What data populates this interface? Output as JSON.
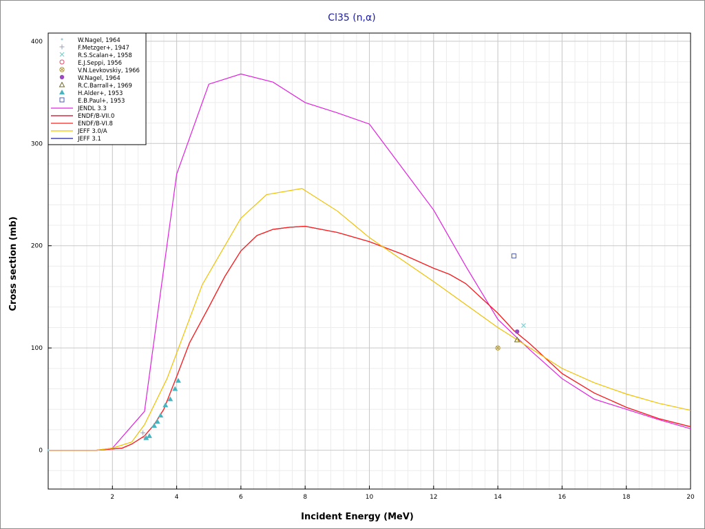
{
  "chart_data": {
    "type": "line",
    "title": "Cl35 (n,α)",
    "xlabel": "Incident Energy (MeV)",
    "ylabel": "Cross section (mb)",
    "xlim": [
      0,
      20
    ],
    "ylim": [
      -38,
      408
    ],
    "x_ticks": [
      2,
      4,
      6,
      8,
      10,
      12,
      14,
      16,
      18,
      20
    ],
    "y_ticks": [
      0,
      100,
      200,
      300,
      400
    ],
    "grid": true,
    "legend_position": "top-left",
    "series": [
      {
        "name": "JENDL 3.3",
        "color": "#e020e0",
        "kind": "line",
        "x": [
          0,
          1.5,
          2.0,
          3.0,
          3.5,
          4.0,
          5.0,
          6.0,
          7.0,
          8.0,
          9.0,
          10.0,
          12.0,
          13.0,
          14.0,
          14.5,
          15.0,
          16.0,
          17.0,
          18.0,
          19.0,
          20.0
        ],
        "y": [
          0,
          0,
          2,
          38,
          155,
          270,
          358,
          368,
          360,
          340,
          330,
          319,
          235,
          180,
          128,
          113,
          98,
          70,
          50,
          40,
          30,
          21
        ]
      },
      {
        "name": "ENDF/B-VII.0",
        "color": "#c8001e",
        "kind": "line",
        "x": [
          0,
          1.5,
          2.3,
          2.6,
          3.0,
          3.3,
          3.6,
          4.0,
          4.4,
          5.0,
          5.5,
          6.0,
          6.5,
          7.0,
          7.5,
          8.0,
          9.0,
          10.0,
          11.0,
          12.0,
          12.5,
          13.0,
          14.0,
          14.5,
          15.0,
          16.0,
          17.0,
          18.0,
          19.0,
          20.0
        ],
        "y": [
          0,
          0,
          2,
          6,
          14,
          25,
          40,
          72,
          105,
          140,
          170,
          195,
          210,
          216,
          218,
          219,
          213,
          204,
          192,
          178,
          172,
          163,
          134,
          117,
          104,
          75,
          56,
          42,
          31,
          23
        ]
      },
      {
        "name": "ENDF/B-VI.8",
        "color": "#ff1e1e",
        "kind": "line",
        "x": [
          0,
          1.5,
          2.3,
          2.6,
          3.0,
          3.3,
          3.6,
          4.0,
          4.4,
          5.0,
          5.5,
          6.0,
          6.5,
          7.0,
          7.5,
          8.0,
          9.0,
          10.0,
          11.0,
          12.0,
          12.5,
          13.0,
          14.0,
          14.5,
          15.0,
          16.0,
          17.0,
          18.0,
          19.0,
          20.0
        ],
        "y": [
          0,
          0,
          2,
          6,
          14,
          25,
          40,
          72,
          105,
          140,
          170,
          195,
          210,
          216,
          218,
          219,
          213,
          204,
          192,
          178,
          172,
          163,
          134,
          117,
          104,
          75,
          56,
          42,
          31,
          23
        ]
      },
      {
        "name": "JEFF 3.0/A",
        "color": "#f0c000",
        "kind": "line",
        "x": [
          0,
          1.5,
          2.0,
          2.6,
          3.0,
          3.7,
          4.0,
          4.8,
          6.0,
          6.8,
          7.9,
          9.0,
          10.0,
          12.0,
          14.0,
          14.5,
          16.0,
          17.0,
          18.0,
          19.0,
          20.0
        ],
        "y": [
          0,
          0,
          2,
          8,
          25,
          70,
          95,
          162,
          227,
          250,
          256,
          234,
          208,
          165,
          120,
          110,
          80,
          66,
          55,
          46,
          39
        ]
      },
      {
        "name": "JEFF 3.1",
        "color": "#1a1ab0",
        "kind": "line",
        "x": [],
        "y": []
      }
    ],
    "experimental": [
      {
        "name": "W.Nagel, 1964",
        "color": "#9cc8d8",
        "marker": "dot",
        "x": [
          0.0
        ],
        "y": [
          0
        ]
      },
      {
        "name": "F.Metzger+, 1947",
        "color": "#9aa0b0",
        "marker": "plus",
        "x": [
          2.95,
          3.0
        ],
        "y": [
          17,
          12
        ]
      },
      {
        "name": "R.S.Scalan+, 1958",
        "color": "#70c8c8",
        "marker": "cross",
        "x": [
          14.8
        ],
        "y": [
          122
        ]
      },
      {
        "name": "E.J.Seppi, 1956",
        "color": "#e04a6a",
        "marker": "circle",
        "x": [],
        "y": []
      },
      {
        "name": "V.N.Levkovskiy, 1966",
        "color": "#b09a3c",
        "marker": "circle-x",
        "x": [
          14.0
        ],
        "y": [
          100
        ]
      },
      {
        "name": "W.Nagel, 1964",
        "color": "#9a4ac0",
        "marker": "filled-circle",
        "x": [
          14.6
        ],
        "y": [
          116
        ]
      },
      {
        "name": "R.C.Barrall+, 1969",
        "color": "#6a6a2a",
        "marker": "triangle",
        "x": [
          14.6
        ],
        "y": [
          108
        ]
      },
      {
        "name": "H.Alder+, 1953",
        "color": "#48b4c0",
        "marker": "filled-triangle",
        "x": [
          3.05,
          3.15,
          3.3,
          3.4,
          3.5,
          3.65,
          3.8,
          3.95,
          4.05
        ],
        "y": [
          12,
          14,
          24,
          28,
          34,
          44,
          50,
          60,
          68
        ]
      },
      {
        "name": "E.B.Paul+, 1953",
        "color": "#4a5ab8",
        "marker": "square",
        "x": [
          14.5
        ],
        "y": [
          190
        ]
      }
    ]
  }
}
